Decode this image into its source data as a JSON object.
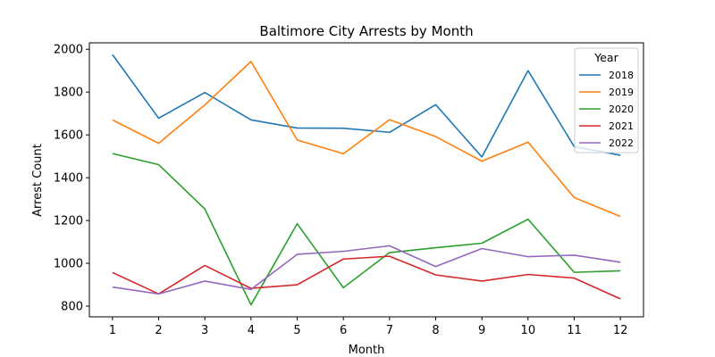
{
  "chart_data": {
    "type": "line",
    "title": "Baltimore City Arrests by Month",
    "xlabel": "Month",
    "ylabel": "Arrest Count",
    "x": [
      1,
      2,
      3,
      4,
      5,
      6,
      7,
      8,
      9,
      10,
      11,
      12
    ],
    "xlim": [
      0.5,
      12.5
    ],
    "ylim": [
      750,
      2030
    ],
    "yticks": [
      800,
      1000,
      1200,
      1400,
      1600,
      1800,
      2000
    ],
    "grid": false,
    "legend": {
      "title": "Year",
      "placement": "top-right"
    },
    "series": [
      {
        "name": "2018",
        "color": "#1f77b4",
        "values": [
          1975,
          1678,
          1798,
          1670,
          1632,
          1631,
          1612,
          1741,
          1497,
          1900,
          1545,
          1505
        ]
      },
      {
        "name": "2019",
        "color": "#ff7f0e",
        "values": [
          1670,
          1561,
          1740,
          1943,
          1576,
          1512,
          1671,
          1592,
          1477,
          1566,
          1307,
          1219
        ]
      },
      {
        "name": "2020",
        "color": "#2ca02c",
        "values": [
          1513,
          1461,
          1254,
          806,
          1185,
          886,
          1050,
          1073,
          1094,
          1206,
          958,
          965
        ]
      },
      {
        "name": "2021",
        "color": "#d62728",
        "values": [
          957,
          857,
          990,
          883,
          900,
          1020,
          1033,
          946,
          917,
          948,
          931,
          834
        ]
      },
      {
        "name": "2022",
        "color": "#9467bd",
        "values": [
          889,
          857,
          917,
          878,
          1042,
          1056,
          1082,
          985,
          1069,
          1031,
          1038,
          1005
        ]
      }
    ]
  }
}
